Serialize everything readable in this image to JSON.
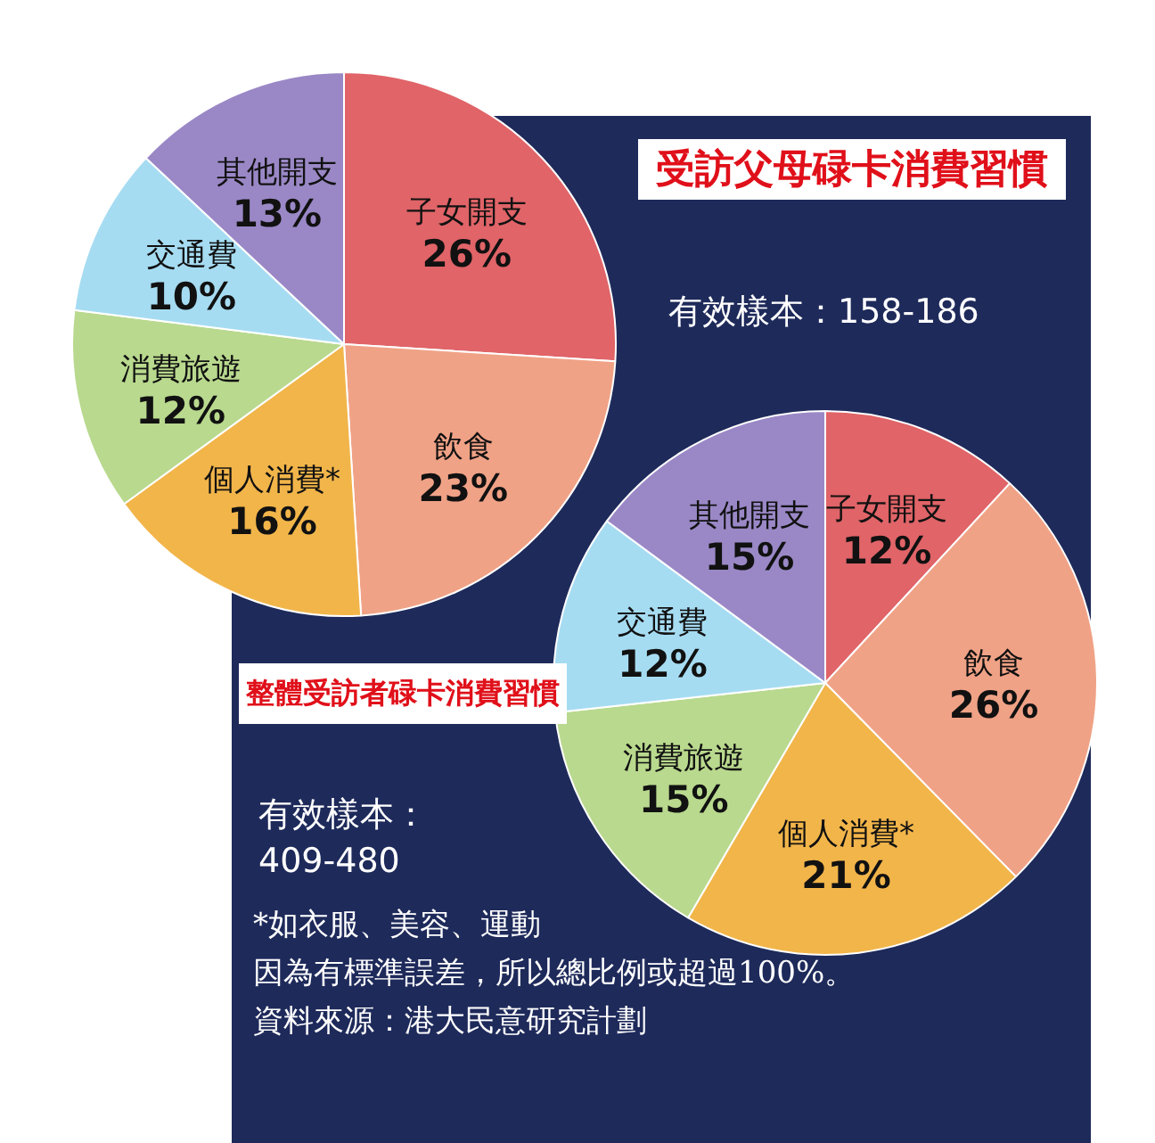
{
  "chart_data": [
    {
      "type": "pie",
      "title": "受訪父母碌卡消費習慣",
      "subtitle": "有效樣本：158-186",
      "categories": [
        "子女開支",
        "飲食",
        "個人消費*",
        "消費旅遊",
        "交通費",
        "其他開支"
      ],
      "values": [
        26,
        23,
        16,
        12,
        10,
        13
      ],
      "value_labels": [
        "26%",
        "23%",
        "16%",
        "12%",
        "10%",
        "13%"
      ],
      "colors": [
        "#e06468",
        "#f0a286",
        "#f2b54a",
        "#b9d98e",
        "#a6dcf2",
        "#9a88c6"
      ],
      "legend": false
    },
    {
      "type": "pie",
      "title": "整體受訪者碌卡消費習慣",
      "subtitle": "有效樣本：\n409-480",
      "categories": [
        "子女開支",
        "飲食",
        "個人消費*",
        "消費旅遊",
        "交通費",
        "其他開支"
      ],
      "values": [
        12,
        26,
        21,
        15,
        12,
        15
      ],
      "value_labels": [
        "12%",
        "26%",
        "21%",
        "15%",
        "12%",
        "15%"
      ],
      "colors": [
        "#e06468",
        "#f0a286",
        "#f2b54a",
        "#b9d98e",
        "#a6dcf2",
        "#9a88c6"
      ],
      "legend": false,
      "annotations": [
        "*如衣服、美容、運動",
        "因為有標準誤差，所以總比例或超過100%。",
        "資料來源：港大民意研究計劃"
      ]
    }
  ]
}
